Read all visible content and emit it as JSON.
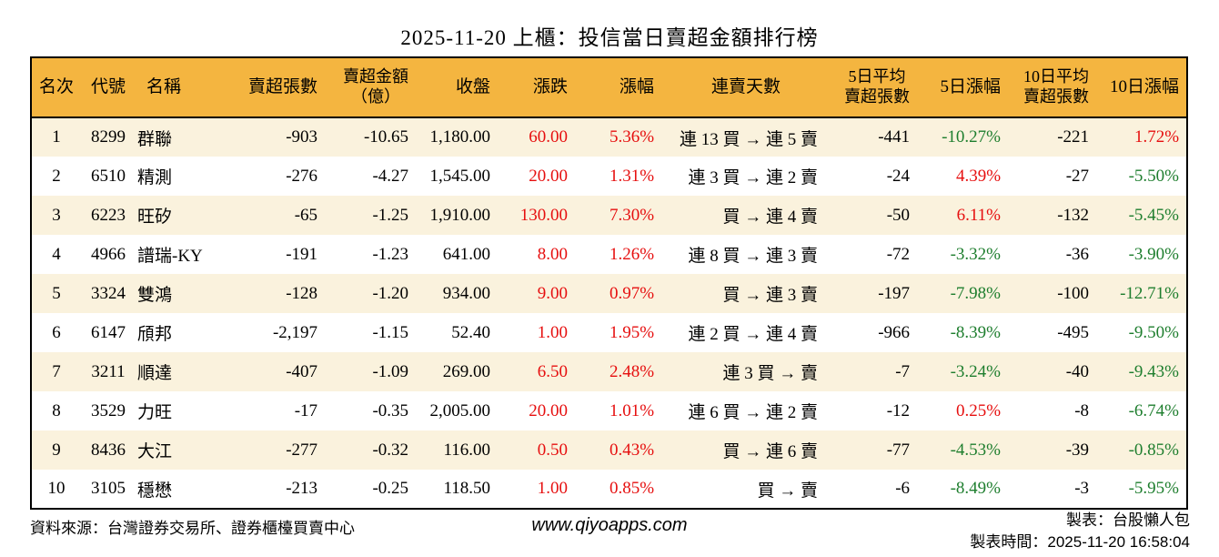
{
  "title": "2025-11-20 上櫃：投信當日賣超金額排行榜",
  "colors": {
    "header_bg": "#f4b540",
    "row_alt_bg": "#faf2dd",
    "up_red": "#e60f0f",
    "down_green": "#1e7e2e"
  },
  "chart_data": {
    "type": "table",
    "title": "2025-11-20 上櫃：投信當日賣超金額排行榜",
    "columns": [
      {
        "key": "rank",
        "label": "名次",
        "lines": [
          "名次"
        ]
      },
      {
        "key": "code",
        "label": "代號",
        "lines": [
          "代號"
        ]
      },
      {
        "key": "name",
        "label": "名稱",
        "lines": [
          "名稱"
        ]
      },
      {
        "key": "sell_volume",
        "label": "賣超張數",
        "lines": [
          "賣超張數"
        ]
      },
      {
        "key": "sell_amount",
        "label": "賣超金額（億）",
        "lines": [
          "賣超金額",
          "（億）"
        ]
      },
      {
        "key": "close",
        "label": "收盤",
        "lines": [
          "收盤"
        ]
      },
      {
        "key": "change",
        "label": "漲跌",
        "lines": [
          "漲跌"
        ]
      },
      {
        "key": "change_pct",
        "label": "漲幅",
        "lines": [
          "漲幅"
        ]
      },
      {
        "key": "streak",
        "label": "連賣天數",
        "lines": [
          "連賣天數"
        ]
      },
      {
        "key": "avg5",
        "label": "5日平均賣超張數",
        "lines": [
          "5日平均",
          "賣超張數"
        ]
      },
      {
        "key": "pct5",
        "label": "5日漲幅",
        "lines": [
          "5日漲幅"
        ]
      },
      {
        "key": "avg10",
        "label": "10日平均賣超張數",
        "lines": [
          "10日平均",
          "賣超張數"
        ]
      },
      {
        "key": "pct10",
        "label": "10日漲幅",
        "lines": [
          "10日漲幅"
        ]
      }
    ],
    "rows": [
      {
        "rank": "1",
        "code": "8299",
        "name": "群聯",
        "sell_volume": "-903",
        "sell_amount": "-10.65",
        "close": "1,180.00",
        "change": "60.00",
        "change_color": "red",
        "change_pct": "5.36%",
        "change_pct_color": "red",
        "streak": "連 13 買 → 連 5 賣",
        "avg5": "-441",
        "pct5": "-10.27%",
        "pct5_color": "green",
        "avg10": "-221",
        "pct10": "1.72%",
        "pct10_color": "red"
      },
      {
        "rank": "2",
        "code": "6510",
        "name": "精測",
        "sell_volume": "-276",
        "sell_amount": "-4.27",
        "close": "1,545.00",
        "change": "20.00",
        "change_color": "red",
        "change_pct": "1.31%",
        "change_pct_color": "red",
        "streak": "連 3 買 → 連 2 賣",
        "avg5": "-24",
        "pct5": "4.39%",
        "pct5_color": "red",
        "avg10": "-27",
        "pct10": "-5.50%",
        "pct10_color": "green"
      },
      {
        "rank": "3",
        "code": "6223",
        "name": "旺矽",
        "sell_volume": "-65",
        "sell_amount": "-1.25",
        "close": "1,910.00",
        "change": "130.00",
        "change_color": "red",
        "change_pct": "7.30%",
        "change_pct_color": "red",
        "streak": "買 → 連 4 賣",
        "avg5": "-50",
        "pct5": "6.11%",
        "pct5_color": "red",
        "avg10": "-132",
        "pct10": "-5.45%",
        "pct10_color": "green"
      },
      {
        "rank": "4",
        "code": "4966",
        "name": "譜瑞-KY",
        "sell_volume": "-191",
        "sell_amount": "-1.23",
        "close": "641.00",
        "change": "8.00",
        "change_color": "red",
        "change_pct": "1.26%",
        "change_pct_color": "red",
        "streak": "連 8 買 → 連 3 賣",
        "avg5": "-72",
        "pct5": "-3.32%",
        "pct5_color": "green",
        "avg10": "-36",
        "pct10": "-3.90%",
        "pct10_color": "green"
      },
      {
        "rank": "5",
        "code": "3324",
        "name": "雙鴻",
        "sell_volume": "-128",
        "sell_amount": "-1.20",
        "close": "934.00",
        "change": "9.00",
        "change_color": "red",
        "change_pct": "0.97%",
        "change_pct_color": "red",
        "streak": "買 → 連 3 賣",
        "avg5": "-197",
        "pct5": "-7.98%",
        "pct5_color": "green",
        "avg10": "-100",
        "pct10": "-12.71%",
        "pct10_color": "green"
      },
      {
        "rank": "6",
        "code": "6147",
        "name": "頎邦",
        "sell_volume": "-2,197",
        "sell_amount": "-1.15",
        "close": "52.40",
        "change": "1.00",
        "change_color": "red",
        "change_pct": "1.95%",
        "change_pct_color": "red",
        "streak": "連 2 買 → 連 4 賣",
        "avg5": "-966",
        "pct5": "-8.39%",
        "pct5_color": "green",
        "avg10": "-495",
        "pct10": "-9.50%",
        "pct10_color": "green"
      },
      {
        "rank": "7",
        "code": "3211",
        "name": "順達",
        "sell_volume": "-407",
        "sell_amount": "-1.09",
        "close": "269.00",
        "change": "6.50",
        "change_color": "red",
        "change_pct": "2.48%",
        "change_pct_color": "red",
        "streak": "連 3 買 → 賣",
        "avg5": "-7",
        "pct5": "-3.24%",
        "pct5_color": "green",
        "avg10": "-40",
        "pct10": "-9.43%",
        "pct10_color": "green"
      },
      {
        "rank": "8",
        "code": "3529",
        "name": "力旺",
        "sell_volume": "-17",
        "sell_amount": "-0.35",
        "close": "2,005.00",
        "change": "20.00",
        "change_color": "red",
        "change_pct": "1.01%",
        "change_pct_color": "red",
        "streak": "連 6 買 → 連 2 賣",
        "avg5": "-12",
        "pct5": "0.25%",
        "pct5_color": "red",
        "avg10": "-8",
        "pct10": "-6.74%",
        "pct10_color": "green"
      },
      {
        "rank": "9",
        "code": "8436",
        "name": "大江",
        "sell_volume": "-277",
        "sell_amount": "-0.32",
        "close": "116.00",
        "change": "0.50",
        "change_color": "red",
        "change_pct": "0.43%",
        "change_pct_color": "red",
        "streak": "買 → 連 6 賣",
        "avg5": "-77",
        "pct5": "-4.53%",
        "pct5_color": "green",
        "avg10": "-39",
        "pct10": "-0.85%",
        "pct10_color": "green"
      },
      {
        "rank": "10",
        "code": "3105",
        "name": "穩懋",
        "sell_volume": "-213",
        "sell_amount": "-0.25",
        "close": "118.50",
        "change": "1.00",
        "change_color": "red",
        "change_pct": "0.85%",
        "change_pct_color": "red",
        "streak": "買 → 賣",
        "avg5": "-6",
        "pct5": "-8.49%",
        "pct5_color": "green",
        "avg10": "-3",
        "pct10": "-5.95%",
        "pct10_color": "green"
      }
    ]
  },
  "footer": {
    "source": "資料來源：台灣證券交易所、證券櫃檯買賣中心",
    "website": "www.qiyoapps.com",
    "author": "製表：台股懶人包",
    "generated": "製表時間：2025-11-20 16:58:04"
  }
}
